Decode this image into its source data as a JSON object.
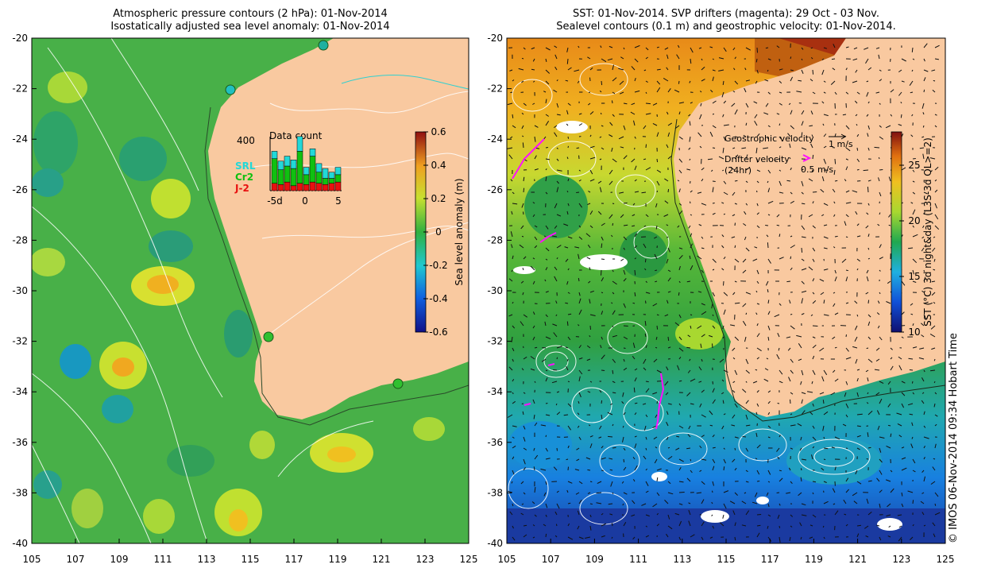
{
  "left_panel": {
    "title_line1": "Atmospheric pressure contours (2 hPa): 01-Nov-2014",
    "title_line2": "Isostatically adjusted sea level anomaly: 01-Nov-2014",
    "x_ticks": [
      "105",
      "107",
      "109",
      "111",
      "113",
      "115",
      "117",
      "119",
      "121",
      "123",
      "125"
    ],
    "y_ticks": [
      "-20",
      "-22",
      "-24",
      "-26",
      "-28",
      "-30",
      "-32",
      "-34",
      "-36",
      "-38",
      "-40"
    ],
    "colorbar": {
      "label": "Sea level anomaly (m)",
      "ticks": [
        "0.6",
        "0.4",
        "0.2",
        "0",
        "-0.2",
        "-0.4",
        "-0.6"
      ],
      "range": [
        -0.6,
        0.6
      ]
    },
    "inset": {
      "title": "Data count",
      "ymax_label": "400",
      "legend": [
        {
          "name": "SRL",
          "color": "#22d8d8"
        },
        {
          "name": "Cr2",
          "color": "#10c010"
        },
        {
          "name": "J-2",
          "color": "#e81010"
        }
      ],
      "x_ticks": [
        "-5d",
        "0",
        "5"
      ],
      "bars": [
        {
          "j2": 60,
          "cr2": 200,
          "srl": 60
        },
        {
          "j2": 50,
          "cr2": 120,
          "srl": 70
        },
        {
          "j2": 70,
          "cr2": 130,
          "srl": 80
        },
        {
          "j2": 40,
          "cr2": 140,
          "srl": 70
        },
        {
          "j2": 60,
          "cr2": 260,
          "srl": 120
        },
        {
          "j2": 50,
          "cr2": 80,
          "srl": 60
        },
        {
          "j2": 70,
          "cr2": 210,
          "srl": 60
        },
        {
          "j2": 60,
          "cr2": 90,
          "srl": 70
        },
        {
          "j2": 50,
          "cr2": 50,
          "srl": 80
        },
        {
          "j2": 60,
          "cr2": 40,
          "srl": 50
        },
        {
          "j2": 70,
          "cr2": 60,
          "srl": 60
        }
      ]
    }
  },
  "right_panel": {
    "title_line1": "SST: 01-Nov-2014. SVP drifters (magenta): 29 Oct - 03 Nov.",
    "title_line2": "Sealevel contours (0.1 m) and geostrophic velocity: 01-Nov-2014.",
    "x_ticks": [
      "105",
      "107",
      "109",
      "111",
      "113",
      "115",
      "117",
      "119",
      "121",
      "123",
      "125"
    ],
    "y_ticks": [
      "-20",
      "-22",
      "-24",
      "-26",
      "-28",
      "-30",
      "-32",
      "-34",
      "-36",
      "-38",
      "-40"
    ],
    "colorbar": {
      "label": "SST (°C) 3d night&day (L3S-3d QL>=2)",
      "ticks": [
        "25",
        "20",
        "15",
        "10"
      ],
      "range": [
        10,
        28
      ]
    },
    "legend": {
      "geo_label": "Geostrophic velocity",
      "geo_scale": "1 m/s",
      "drifter_label": "Drifter velocity",
      "drifter_sub": "(24hr)",
      "drifter_scale": "0.5 m/s"
    }
  },
  "credit": "© IMOS 06-Nov-2014 09:34 Hobart Time",
  "colors": {
    "land": "#f9c9a0",
    "sla_mid": "#3cb63c",
    "drifter": "#ff10ff"
  }
}
